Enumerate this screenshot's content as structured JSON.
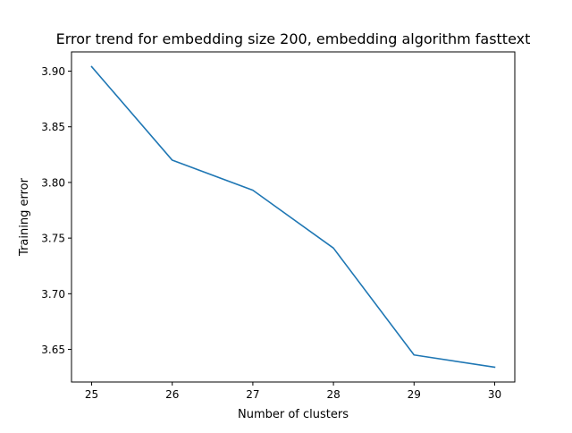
{
  "chart_data": {
    "type": "line",
    "title": "Error trend for embedding size 200, embedding algorithm fasttext",
    "xlabel": "Number of clusters",
    "ylabel": "Training error",
    "x": [
      25,
      26,
      27,
      28,
      29,
      30
    ],
    "series": [
      {
        "values": [
          3.904,
          3.82,
          3.793,
          3.741,
          3.645,
          3.634
        ],
        "color": "#1f77b4"
      }
    ],
    "xticks": [
      "25",
      "26",
      "27",
      "28",
      "29",
      "30"
    ],
    "yticks": [
      "3.65",
      "3.70",
      "3.75",
      "3.80",
      "3.85",
      "3.90"
    ],
    "xlim": [
      24.75,
      30.25
    ],
    "ylim": [
      3.6207,
      3.9173
    ],
    "grid": false,
    "legend": "none"
  }
}
